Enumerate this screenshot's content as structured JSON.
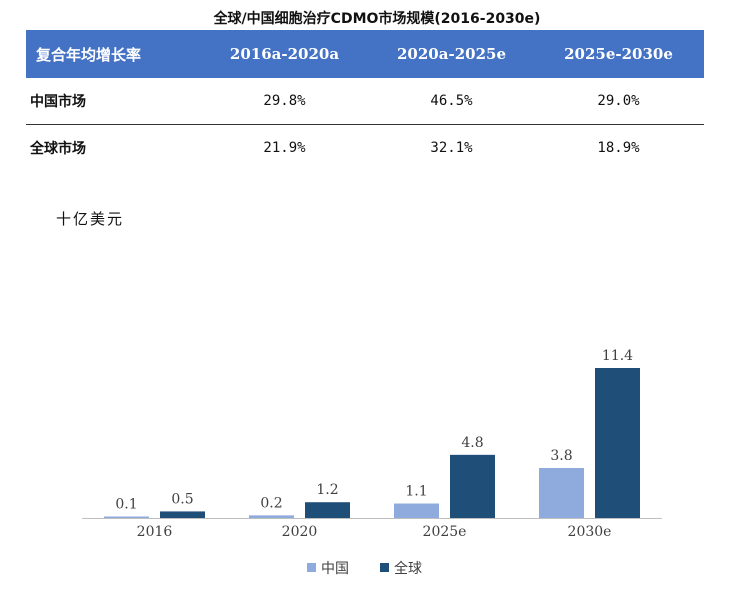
{
  "title": "全球/中国细胞治疗CDMO市场规模(2016-2030e)",
  "table": {
    "header": [
      "复合年均增长率",
      "2016a-2020a",
      "2020a-2025e",
      "2025e-2030e"
    ],
    "rows": [
      {
        "label": "中国市场",
        "values": [
          "29.8%",
          "46.5%",
          "29.0%"
        ]
      },
      {
        "label": "全球市场",
        "values": [
          "21.9%",
          "32.1%",
          "18.9%"
        ]
      }
    ]
  },
  "unit_label": "十亿美元",
  "chart_data": {
    "type": "bar",
    "categories": [
      "2016",
      "2020",
      "2025e",
      "2030e"
    ],
    "series": [
      {
        "name": "中国",
        "values": [
          0.1,
          0.2,
          1.1,
          3.8
        ],
        "labels": [
          "0.1",
          "0.2",
          "1.1",
          "3.8"
        ],
        "color": "#8faadc"
      },
      {
        "name": "全球",
        "values": [
          0.5,
          1.2,
          4.8,
          11.4
        ],
        "labels": [
          "0.5",
          "1.2",
          "4.8",
          "11.4"
        ],
        "color": "#1f4e79"
      }
    ],
    "ylabel": "十亿美元",
    "ylim": [
      0,
      11.4
    ],
    "grid": false,
    "legend_position": "bottom-center"
  }
}
